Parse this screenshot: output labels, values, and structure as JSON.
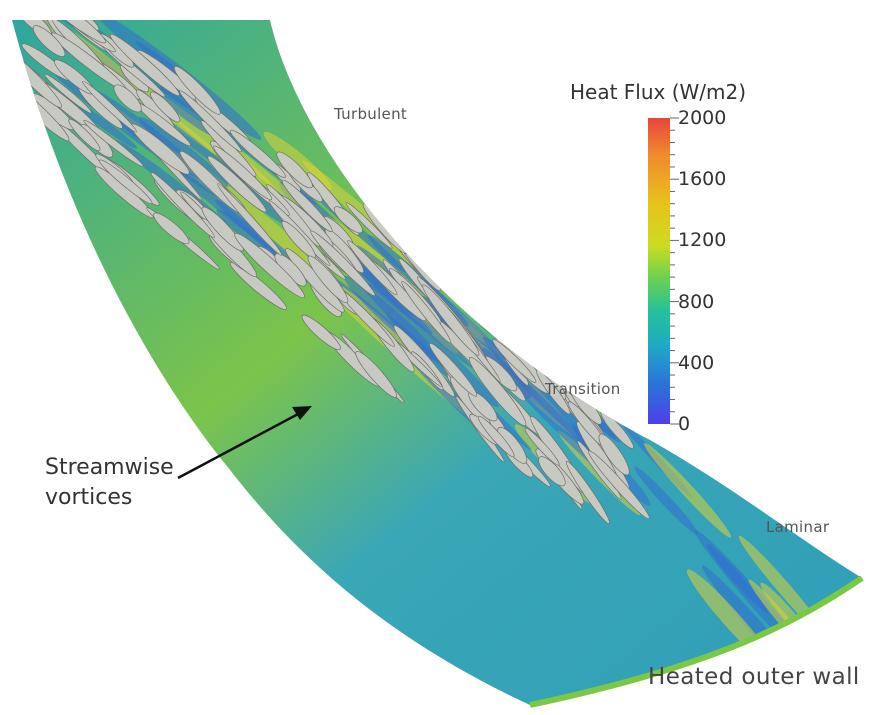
{
  "labels": {
    "turbulent": "Turbulent",
    "transition": "Transition",
    "laminar": "Laminar",
    "heated_wall": "Heated outer wall",
    "vortices_line1": "Streamwise",
    "vortices_line2": "vortices"
  },
  "colorbar": {
    "title": "Heat Flux (W/m2)",
    "min": 0,
    "max": 2000,
    "ticks": [
      "2000",
      "1600",
      "1200",
      "800",
      "400",
      "0"
    ],
    "colors": [
      "#e8453c",
      "#f08a2c",
      "#e9c21c",
      "#c9dc22",
      "#6ed14f",
      "#24c29a",
      "#1fa8c4",
      "#2a73d9",
      "#4f3fe8"
    ]
  },
  "surface_colors": {
    "laminar_base": "#2f9fb0",
    "stripe_blue": "#2f6fd0",
    "stripe_yellow": "#d8d43a",
    "vortex_fill": "#c9c9c4"
  }
}
